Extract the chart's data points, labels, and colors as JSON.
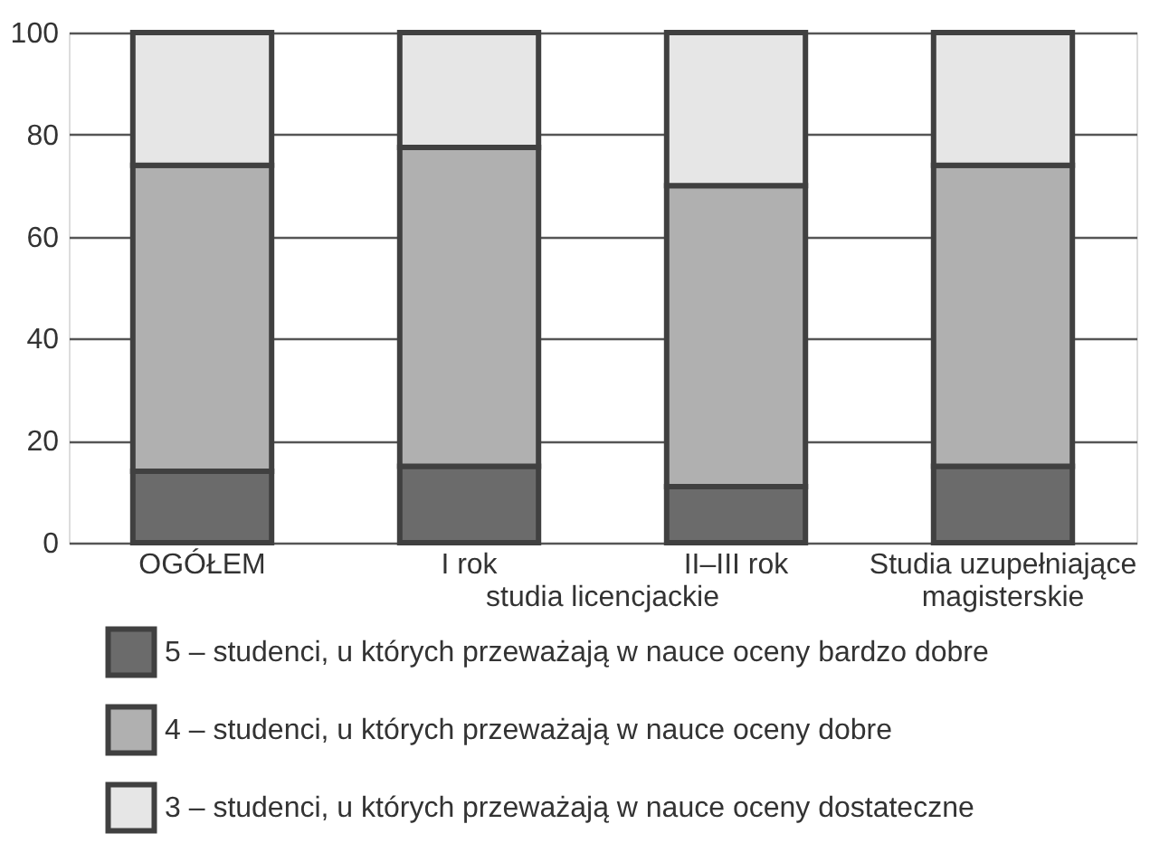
{
  "chart_data": {
    "type": "bar",
    "stacked": true,
    "categories": [
      "OGÓŁEM",
      "I rok",
      "II–III rok",
      "Studia uzupełniające magisterskie"
    ],
    "series": [
      {
        "name": "5 – studenci, u których przeważają w nauce oceny bardzo dobre",
        "color": "#6b6b6b",
        "values": [
          14,
          15,
          11,
          15
        ]
      },
      {
        "name": "4 – studenci, u których przeważają w nauce oceny dobre",
        "color": "#b0b0b0",
        "values": [
          60,
          62.5,
          59,
          59
        ]
      },
      {
        "name": "3 – studenci, u których przeważają w nauce oceny dostateczne",
        "color": "#e6e6e6",
        "values": [
          26,
          22.5,
          30,
          26
        ]
      }
    ],
    "annotations": [
      "studia licencjackie"
    ],
    "ylim": [
      0,
      100
    ],
    "yticks": [
      0,
      20,
      40,
      60,
      80,
      100
    ],
    "grid": "y",
    "legend": "bottom"
  }
}
